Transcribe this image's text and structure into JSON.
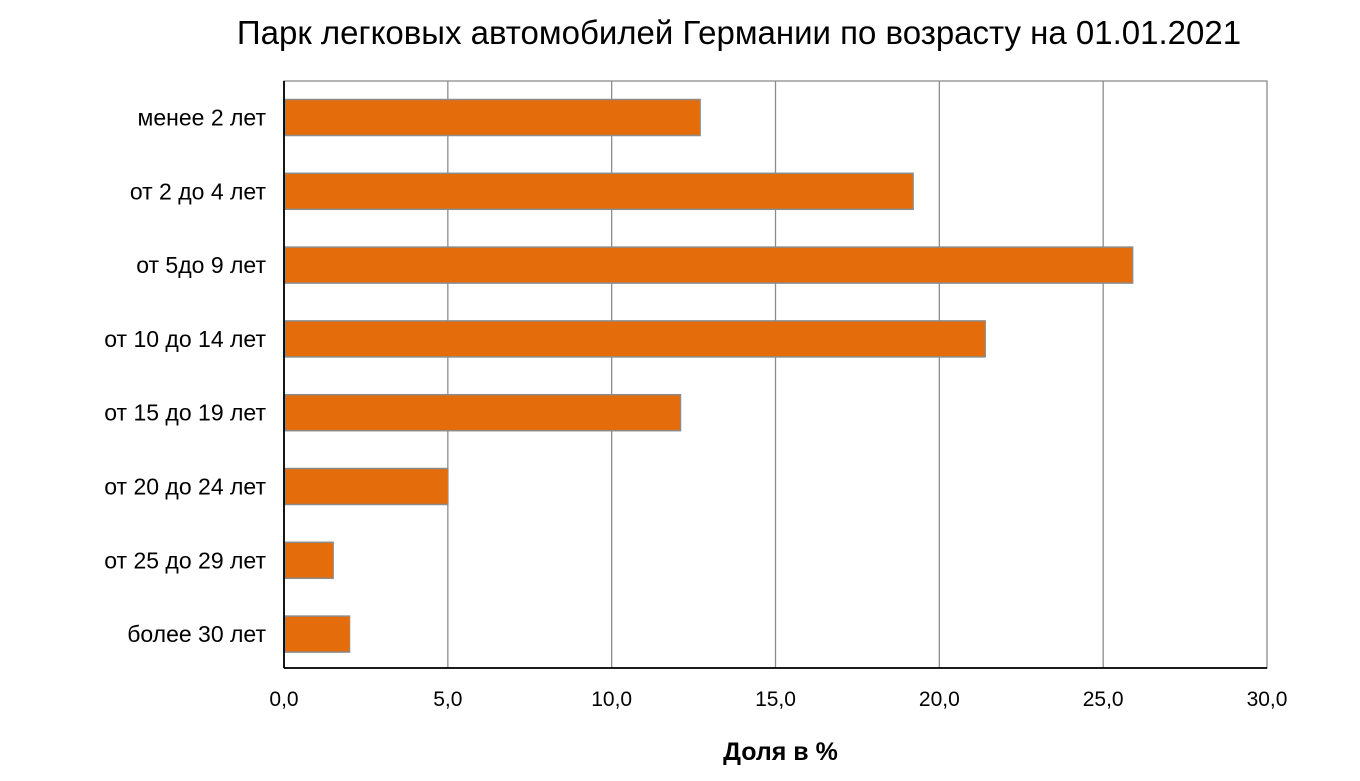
{
  "chart_data": {
    "type": "bar",
    "orientation": "horizontal",
    "title": "Парк легковых автомобилей Германии по возрасту на 01.01.2021",
    "xlabel": "Доля в %",
    "ylabel": "",
    "categories": [
      "менее 2 лет",
      "от 2 до 4 лет",
      "от 5до 9 лет",
      "от 10 до 14 лет",
      "от 15 до 19 лет",
      "от 20 до 24 лет",
      "от 25 до 29 лет",
      "более 30 лет"
    ],
    "values": [
      12.7,
      19.2,
      25.9,
      21.4,
      12.1,
      5.0,
      1.5,
      2.0
    ],
    "xlim": [
      0,
      30
    ],
    "ticks": [
      {
        "value": 0,
        "label": "0,0"
      },
      {
        "value": 5,
        "label": "5,0"
      },
      {
        "value": 10,
        "label": "10,0"
      },
      {
        "value": 15,
        "label": "15,0"
      },
      {
        "value": 20,
        "label": "20,0"
      },
      {
        "value": 25,
        "label": "25,0"
      },
      {
        "value": 30,
        "label": "30,0"
      }
    ],
    "grid": "vertical",
    "legend": "none",
    "colors": {
      "bar_fill": "#e46c0a",
      "bar_stroke": "#8c8c8c",
      "gridline": "#8c8c8c",
      "axis": "#000000"
    }
  }
}
